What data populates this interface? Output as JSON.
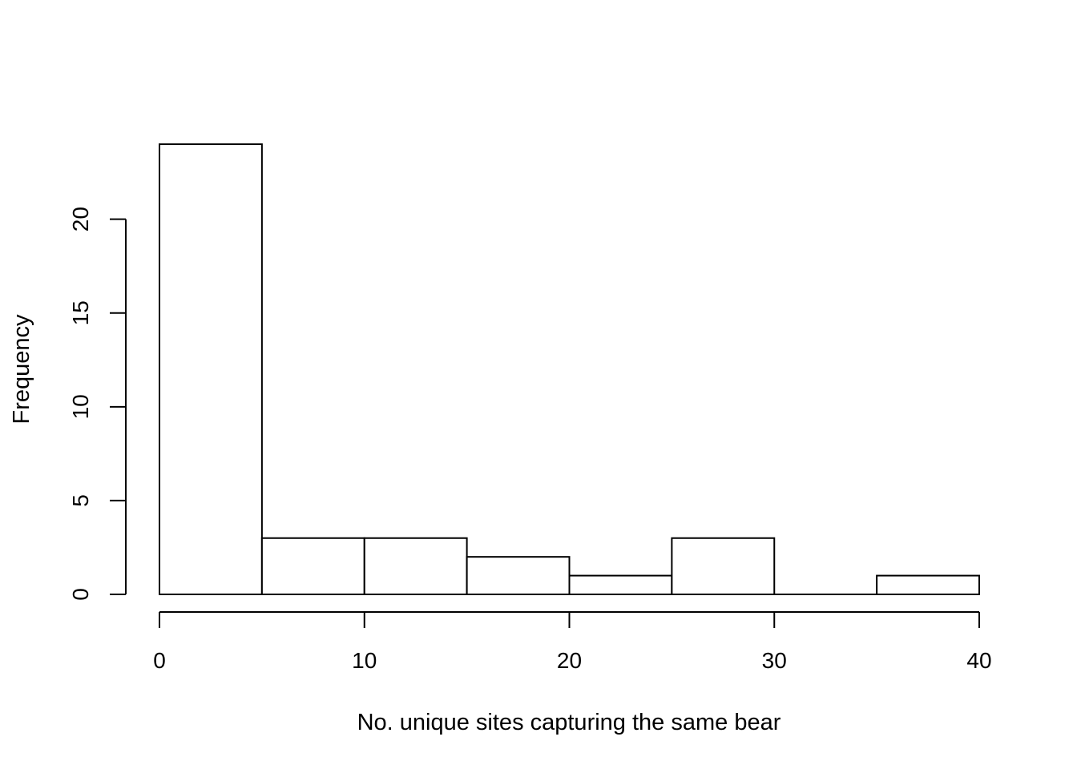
{
  "chart_data": {
    "type": "bar",
    "subtype": "histogram",
    "title": "",
    "xlabel": "No. unique sites capturing the same bear",
    "ylabel": "Frequency",
    "bins": [
      {
        "start": 0,
        "end": 5,
        "count": 24
      },
      {
        "start": 5,
        "end": 10,
        "count": 3
      },
      {
        "start": 10,
        "end": 15,
        "count": 3
      },
      {
        "start": 15,
        "end": 20,
        "count": 2
      },
      {
        "start": 20,
        "end": 25,
        "count": 1
      },
      {
        "start": 25,
        "end": 30,
        "count": 3
      },
      {
        "start": 30,
        "end": 35,
        "count": 0
      },
      {
        "start": 35,
        "end": 40,
        "count": 1
      }
    ],
    "xlim": [
      0,
      40
    ],
    "ylim": [
      0,
      24
    ],
    "x_ticks": [
      "0",
      "10",
      "20",
      "30",
      "40"
    ],
    "y_ticks": [
      "0",
      "5",
      "10",
      "15",
      "20"
    ],
    "grid": false,
    "legend": "none",
    "bar_fill": "#ffffff",
    "bar_stroke": "#000000"
  }
}
